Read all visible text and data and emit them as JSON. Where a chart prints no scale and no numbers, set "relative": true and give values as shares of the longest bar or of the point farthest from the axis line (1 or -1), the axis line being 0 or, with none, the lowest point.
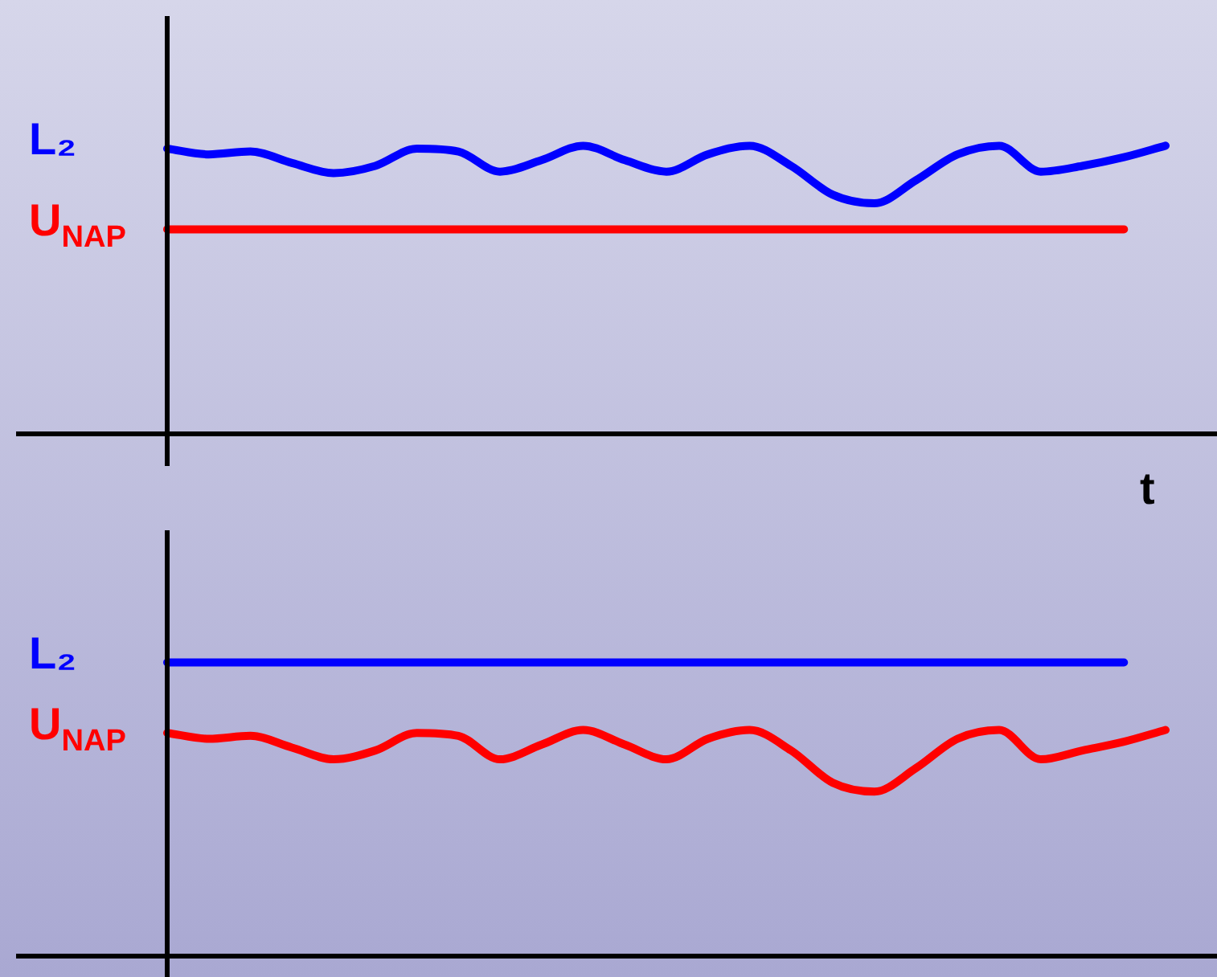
{
  "chart_data": [
    {
      "type": "line",
      "xlabel": "t",
      "relative": true,
      "tick_labels": false,
      "categories": [
        null,
        null,
        null,
        null,
        null,
        null,
        null,
        null,
        null,
        null,
        null,
        null,
        null,
        null,
        null,
        null,
        null,
        null,
        null,
        null,
        null,
        null,
        null,
        null,
        null
      ],
      "series": [
        {
          "name": "L₂",
          "color": "#0000ff",
          "values": [
            0.99,
            0.97,
            0.98,
            0.94,
            0.905,
            0.93,
            0.99,
            0.98,
            0.91,
            0.95,
            1.0,
            0.95,
            0.91,
            0.97,
            1.0,
            0.93,
            0.83,
            0.8,
            0.88,
            0.97,
            1.0,
            0.91,
            0.93,
            0.96,
            1.0
          ]
        },
        {
          "name": "U$_{NAP}$",
          "color": "#ff0000",
          "values": [
            0.71,
            0.71,
            0.71,
            0.71,
            0.71,
            0.71,
            0.71,
            0.71,
            0.71,
            0.71,
            0.71,
            0.71,
            0.71,
            0.71,
            0.71,
            0.71,
            0.71,
            0.71,
            0.71,
            0.71,
            0.71,
            0.71,
            0.71,
            0.71,
            null
          ]
        }
      ]
    },
    {
      "type": "line",
      "relative": true,
      "tick_labels": false,
      "categories": [
        null,
        null,
        null,
        null,
        null,
        null,
        null,
        null,
        null,
        null,
        null,
        null,
        null,
        null,
        null,
        null,
        null,
        null,
        null,
        null,
        null,
        null,
        null,
        null,
        null
      ],
      "series": [
        {
          "name": "L₂",
          "color": "#0000ff",
          "values": [
            1,
            1,
            1,
            1,
            1,
            1,
            1,
            1,
            1,
            1,
            1,
            1,
            1,
            1,
            1,
            1,
            1,
            1,
            1,
            1,
            1,
            1,
            1,
            1,
            null
          ]
        },
        {
          "name": "U$_{NAP}$",
          "color": "#ff0000",
          "values": [
            0.76,
            0.74,
            0.75,
            0.71,
            0.67,
            0.7,
            0.76,
            0.75,
            0.67,
            0.72,
            0.77,
            0.72,
            0.67,
            0.74,
            0.77,
            0.7,
            0.59,
            0.56,
            0.64,
            0.74,
            0.77,
            0.67,
            0.7,
            0.73,
            0.77
          ]
        }
      ]
    }
  ]
}
